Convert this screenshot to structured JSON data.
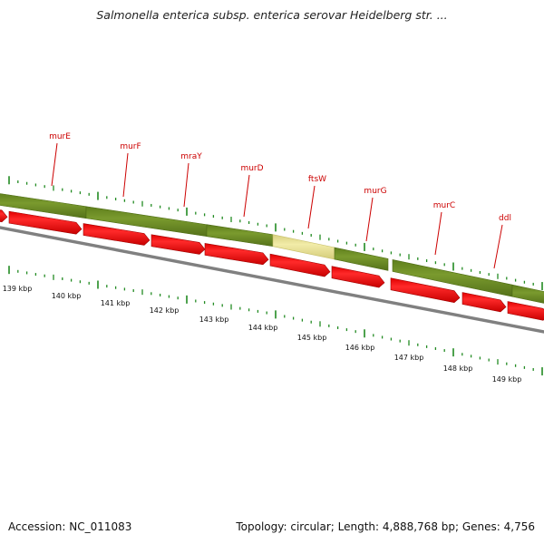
{
  "title": "Salmonella enterica subsp. enterica serovar Heidelberg str. ...",
  "footer": {
    "accession": "Accession: NC_011083",
    "summary": "Topology: circular; Length: 4,888,768 bp; Genes: 4,756"
  },
  "colors": {
    "gene_label": "#cc0000",
    "gene_green": "#6b8e23",
    "gene_yellow": "#eee8aa",
    "cds_red": "#ff0000",
    "backbone": "#808080",
    "tick": "#228b22"
  },
  "genes": [
    {
      "name": "murE",
      "highlighted": false
    },
    {
      "name": "murF",
      "highlighted": false
    },
    {
      "name": "mraY",
      "highlighted": false
    },
    {
      "name": "murD",
      "highlighted": false
    },
    {
      "name": "ftsW",
      "highlighted": true
    },
    {
      "name": "murG",
      "highlighted": false
    },
    {
      "name": "murC",
      "highlighted": false
    },
    {
      "name": "ddl",
      "highlighted": false
    }
  ],
  "scale_labels": [
    "139 kbp",
    "140 kbp",
    "141 kbp",
    "142 kbp",
    "143 kbp",
    "144 kbp",
    "145 kbp",
    "146 kbp",
    "147 kbp",
    "148 kbp",
    "149 kbp"
  ]
}
